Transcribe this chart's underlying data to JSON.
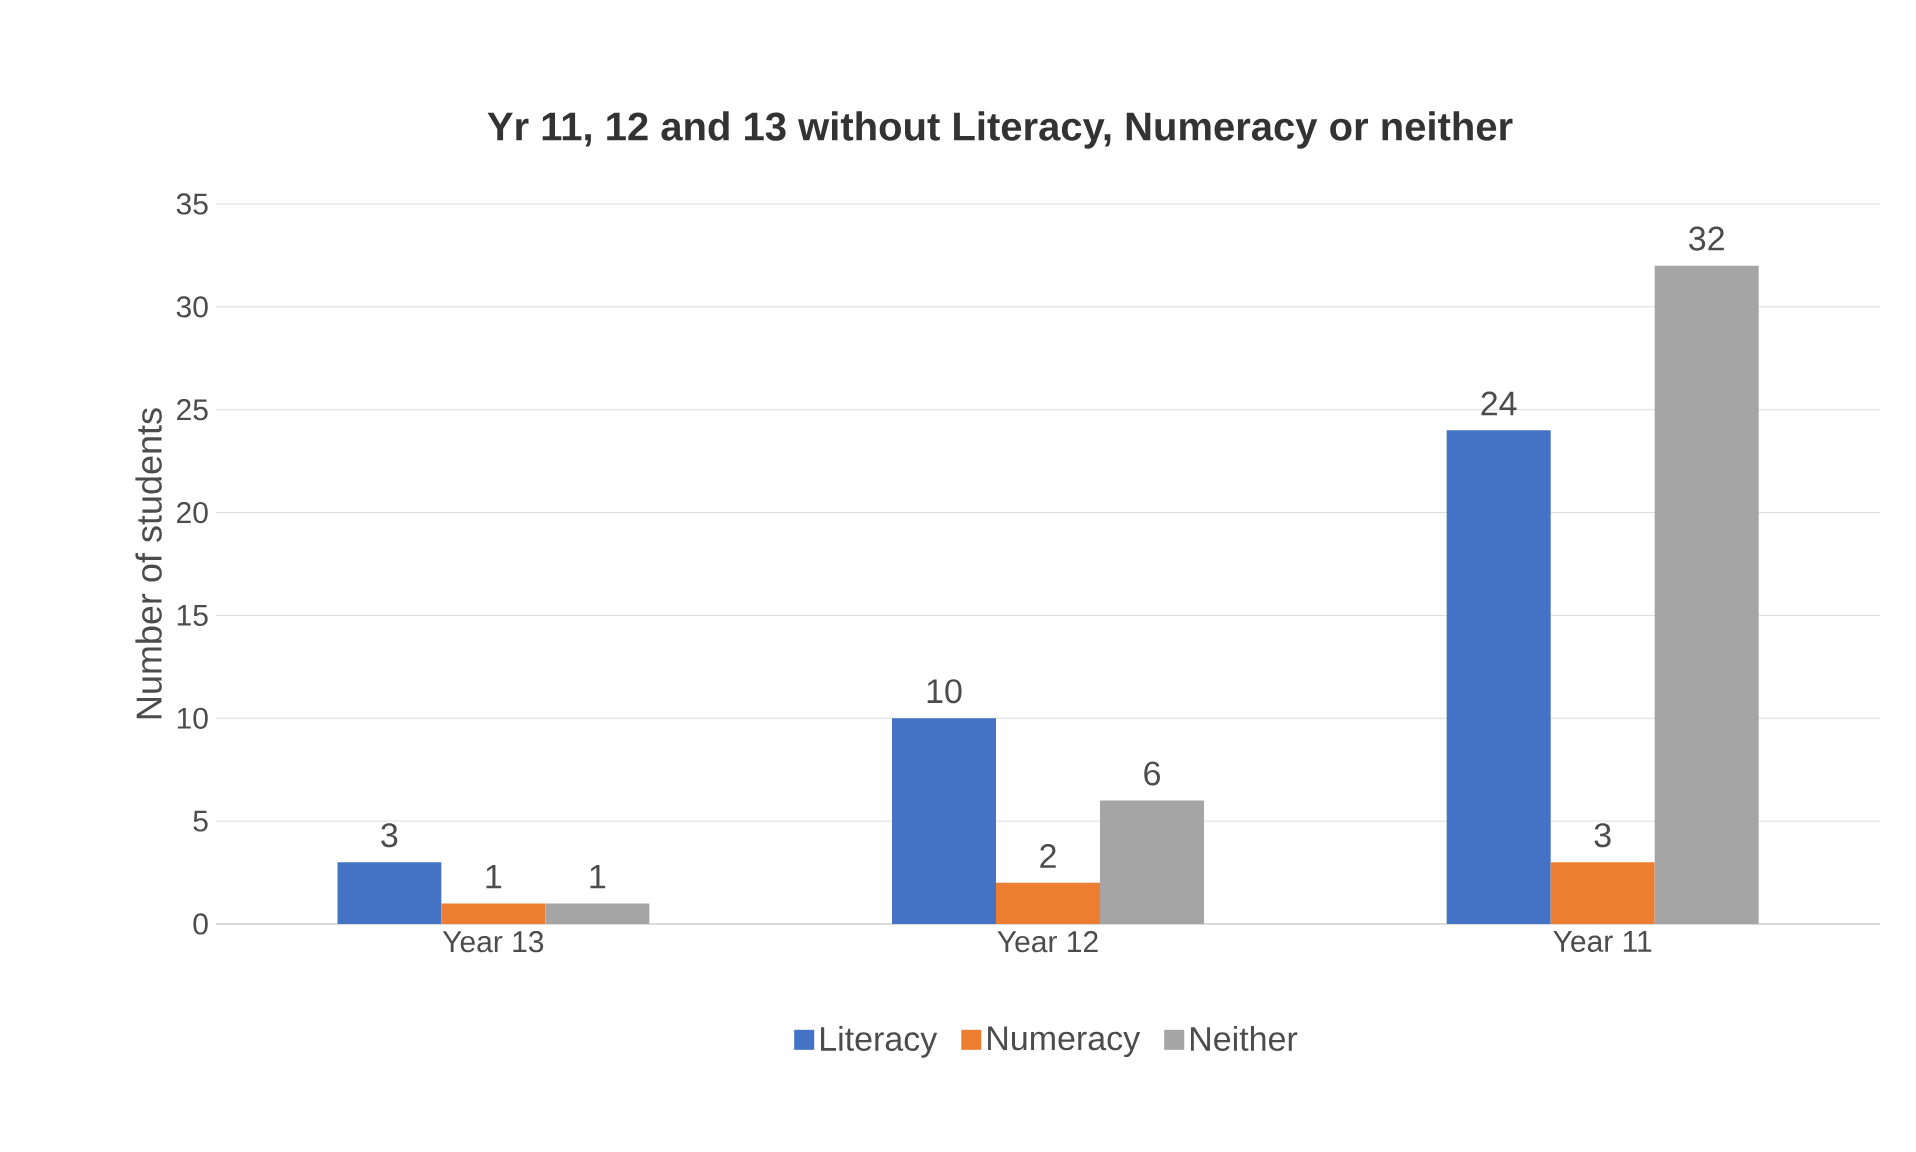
{
  "chart_data": {
    "type": "bar",
    "title": "Yr 11, 12 and 13 without Literacy, Numeracy or neither",
    "ylabel": "Number of students",
    "categories": [
      "Year 13",
      "Year 12",
      "Year 11"
    ],
    "series": [
      {
        "name": "Literacy",
        "color": "#4472c4",
        "values": [
          3,
          10,
          24
        ]
      },
      {
        "name": "Numeracy",
        "color": "#ed7d31",
        "values": [
          1,
          2,
          3
        ]
      },
      {
        "name": "Neither",
        "color": "#a5a5a5",
        "values": [
          1,
          6,
          32
        ]
      }
    ],
    "ylim": [
      0,
      35
    ],
    "yticks": [
      0,
      5,
      10,
      15,
      20,
      25,
      30,
      35
    ],
    "grid": "y",
    "legend": "bottom",
    "data_labels": true
  }
}
